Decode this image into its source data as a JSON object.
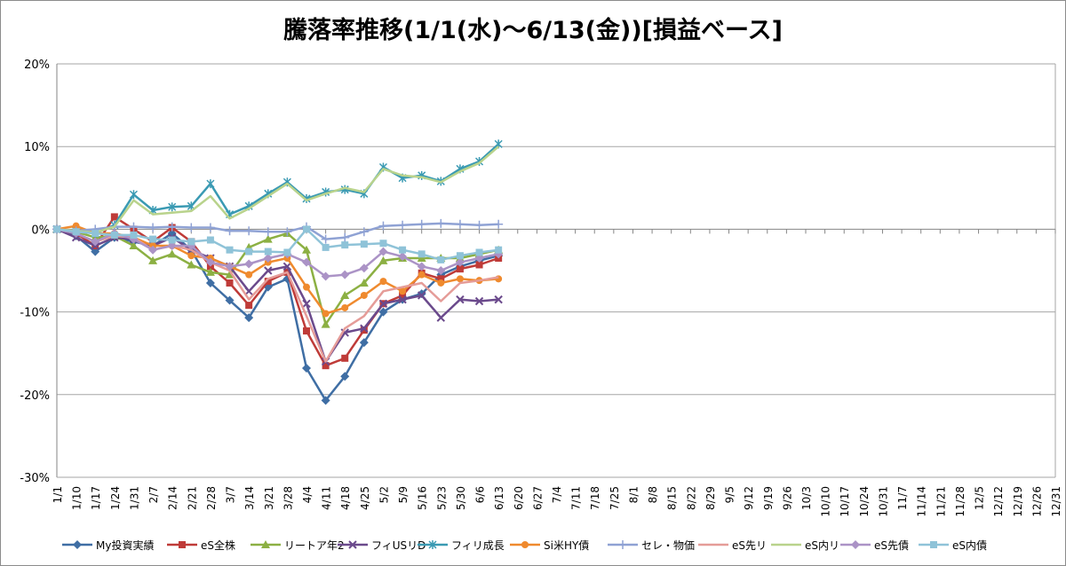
{
  "chart_data": {
    "type": "line",
    "title": "騰落率推移(1/1(水)～6/13(金))[損益ベース]",
    "xlabel": "",
    "ylabel": "",
    "ylim": [
      -30,
      20
    ],
    "yticks": [
      20,
      10,
      0,
      -10,
      -20,
      -30
    ],
    "ytick_labels": [
      "20%",
      "10%",
      "0%",
      "-10%",
      "-20%",
      "-30%"
    ],
    "grid": "horizontal",
    "legend_position": "bottom",
    "categories": [
      "1/1",
      "1/10",
      "1/17",
      "1/24",
      "1/31",
      "2/7",
      "2/14",
      "2/21",
      "2/28",
      "3/7",
      "3/14",
      "3/21",
      "3/28",
      "4/4",
      "4/11",
      "4/18",
      "4/25",
      "5/2",
      "5/9",
      "5/16",
      "5/23",
      "5/30",
      "6/6",
      "6/13",
      "6/20",
      "6/27",
      "7/4",
      "7/11",
      "7/18",
      "7/25",
      "8/1",
      "8/8",
      "8/15",
      "8/22",
      "8/29",
      "9/5",
      "9/12",
      "9/19",
      "9/26",
      "10/3",
      "10/10",
      "10/17",
      "10/24",
      "10/31",
      "11/7",
      "11/14",
      "11/21",
      "11/28",
      "12/5",
      "12/12",
      "12/19",
      "12/26",
      "12/31"
    ],
    "x": [
      1,
      10,
      17,
      24,
      31,
      38,
      45,
      52,
      59,
      66,
      73,
      80,
      87,
      94,
      101,
      108,
      115,
      122,
      129,
      136,
      143,
      150,
      157,
      164,
      171,
      178,
      185,
      192,
      199,
      206,
      213,
      220,
      227,
      234,
      241,
      248,
      255,
      262,
      269,
      276,
      283,
      290,
      297,
      304,
      311,
      318,
      325,
      332,
      339,
      346,
      353,
      360,
      365
    ],
    "series": [
      {
        "name": "My投資実績",
        "color": "#3f6ea4",
        "marker": "diamond",
        "points": [
          [
            1,
            0
          ],
          [
            10,
            -0.8
          ],
          [
            17,
            -2.7
          ],
          [
            24,
            -1.0
          ],
          [
            31,
            -1.5
          ],
          [
            38,
            -2.0
          ],
          [
            45,
            -0.5
          ],
          [
            52,
            -2.5
          ],
          [
            59,
            -6.5
          ],
          [
            66,
            -8.6
          ],
          [
            73,
            -10.7
          ],
          [
            80,
            -7.0
          ],
          [
            87,
            -6.0
          ],
          [
            94,
            -16.8
          ],
          [
            101,
            -20.7
          ],
          [
            108,
            -17.8
          ],
          [
            115,
            -13.7
          ],
          [
            122,
            -10.0
          ],
          [
            129,
            -8.5
          ],
          [
            136,
            -7.8
          ],
          [
            143,
            -5.5
          ],
          [
            150,
            -4.5
          ],
          [
            157,
            -3.8
          ],
          [
            164,
            -3.2
          ]
        ]
      },
      {
        "name": "eS全株",
        "color": "#bf3b38",
        "marker": "square",
        "points": [
          [
            1,
            0
          ],
          [
            10,
            -0.5
          ],
          [
            17,
            -2.0
          ],
          [
            24,
            1.5
          ],
          [
            31,
            0
          ],
          [
            38,
            -1.5
          ],
          [
            45,
            0.2
          ],
          [
            52,
            -1.5
          ],
          [
            59,
            -4.5
          ],
          [
            66,
            -6.5
          ],
          [
            73,
            -9.2
          ],
          [
            80,
            -6.3
          ],
          [
            87,
            -5.2
          ],
          [
            94,
            -12.3
          ],
          [
            101,
            -16.5
          ],
          [
            108,
            -15.6
          ],
          [
            115,
            -12.2
          ],
          [
            122,
            -9.0
          ],
          [
            129,
            -8.0
          ],
          [
            136,
            -5.3
          ],
          [
            143,
            -6.0
          ],
          [
            150,
            -4.8
          ],
          [
            157,
            -4.3
          ],
          [
            164,
            -3.5
          ]
        ]
      },
      {
        "name": "リートア年2",
        "color": "#8cb043",
        "marker": "triangle",
        "points": [
          [
            1,
            0
          ],
          [
            10,
            -0.3
          ],
          [
            17,
            -1.0
          ],
          [
            24,
            -0.8
          ],
          [
            31,
            -2.0
          ],
          [
            38,
            -3.8
          ],
          [
            45,
            -3.0
          ],
          [
            52,
            -4.3
          ],
          [
            59,
            -5.2
          ],
          [
            66,
            -5.5
          ],
          [
            73,
            -2.2
          ],
          [
            80,
            -1.2
          ],
          [
            87,
            -0.5
          ],
          [
            94,
            -2.5
          ],
          [
            101,
            -11.5
          ],
          [
            108,
            -8.0
          ],
          [
            115,
            -6.5
          ],
          [
            122,
            -3.8
          ],
          [
            129,
            -3.5
          ],
          [
            136,
            -3.5
          ],
          [
            143,
            -3.5
          ],
          [
            150,
            -3.5
          ],
          [
            157,
            -3.0
          ],
          [
            164,
            -2.5
          ]
        ]
      },
      {
        "name": "フィUSリD",
        "color": "#6b4a8c",
        "marker": "x",
        "points": [
          [
            1,
            0
          ],
          [
            10,
            -1.0
          ],
          [
            17,
            -2.0
          ],
          [
            24,
            -1.0
          ],
          [
            31,
            -1.2
          ],
          [
            38,
            -2.0
          ],
          [
            45,
            -1.0
          ],
          [
            52,
            -2.5
          ],
          [
            59,
            -3.5
          ],
          [
            66,
            -4.5
          ],
          [
            73,
            -7.5
          ],
          [
            80,
            -5.0
          ],
          [
            87,
            -4.5
          ],
          [
            94,
            -9.0
          ],
          [
            101,
            -16.0
          ],
          [
            108,
            -12.5
          ],
          [
            115,
            -12.0
          ],
          [
            122,
            -9.0
          ],
          [
            129,
            -8.5
          ],
          [
            136,
            -8.0
          ],
          [
            143,
            -10.7
          ],
          [
            150,
            -8.5
          ],
          [
            157,
            -8.7
          ],
          [
            164,
            -8.5
          ]
        ]
      },
      {
        "name": "フィリ成長",
        "color": "#3a9ab3",
        "marker": "star",
        "points": [
          [
            1,
            0
          ],
          [
            10,
            -0.2
          ],
          [
            17,
            -0.5
          ],
          [
            24,
            0.5
          ],
          [
            31,
            4.2
          ],
          [
            38,
            2.3
          ],
          [
            45,
            2.7
          ],
          [
            52,
            2.8
          ],
          [
            59,
            5.5
          ],
          [
            66,
            1.8
          ],
          [
            73,
            2.8
          ],
          [
            80,
            4.3
          ],
          [
            87,
            5.7
          ],
          [
            94,
            3.7
          ],
          [
            101,
            4.5
          ],
          [
            108,
            4.8
          ],
          [
            115,
            4.3
          ],
          [
            122,
            7.5
          ],
          [
            129,
            6.2
          ],
          [
            136,
            6.5
          ],
          [
            143,
            5.8
          ],
          [
            150,
            7.3
          ],
          [
            157,
            8.2
          ],
          [
            164,
            10.3
          ]
        ]
      },
      {
        "name": "Si米HY債",
        "color": "#ef8a2e",
        "marker": "circle",
        "points": [
          [
            1,
            0
          ],
          [
            10,
            0.4
          ],
          [
            17,
            -0.5
          ],
          [
            24,
            -0.5
          ],
          [
            31,
            -1.0
          ],
          [
            38,
            -2.0
          ],
          [
            45,
            -2.0
          ],
          [
            52,
            -3.2
          ],
          [
            59,
            -3.5
          ],
          [
            66,
            -4.5
          ],
          [
            73,
            -5.5
          ],
          [
            80,
            -4.0
          ],
          [
            87,
            -3.5
          ],
          [
            94,
            -7.0
          ],
          [
            101,
            -10.2
          ],
          [
            108,
            -9.5
          ],
          [
            115,
            -8.0
          ],
          [
            122,
            -6.3
          ],
          [
            129,
            -7.5
          ],
          [
            136,
            -5.5
          ],
          [
            143,
            -6.5
          ],
          [
            150,
            -6.0
          ],
          [
            157,
            -6.2
          ],
          [
            164,
            -6.0
          ]
        ]
      },
      {
        "name": "セレ・物価",
        "color": "#8fa2d4",
        "marker": "plus",
        "points": [
          [
            1,
            0
          ],
          [
            10,
            -0.2
          ],
          [
            17,
            0
          ],
          [
            24,
            0.3
          ],
          [
            31,
            0.3
          ],
          [
            38,
            0.2
          ],
          [
            45,
            0.3
          ],
          [
            52,
            0.2
          ],
          [
            59,
            0.2
          ],
          [
            66,
            -0.2
          ],
          [
            73,
            -0.2
          ],
          [
            80,
            -0.3
          ],
          [
            87,
            -0.3
          ],
          [
            94,
            0.3
          ],
          [
            101,
            -1.2
          ],
          [
            108,
            -1.0
          ],
          [
            115,
            -0.3
          ],
          [
            122,
            0.4
          ],
          [
            129,
            0.5
          ],
          [
            136,
            0.6
          ],
          [
            143,
            0.7
          ],
          [
            150,
            0.6
          ],
          [
            157,
            0.5
          ],
          [
            164,
            0.6
          ]
        ]
      },
      {
        "name": "eS先リ",
        "color": "#e59c98",
        "marker": "none",
        "points": [
          [
            1,
            0
          ],
          [
            10,
            -0.5
          ],
          [
            17,
            -1.5
          ],
          [
            24,
            -0.8
          ],
          [
            31,
            -1.0
          ],
          [
            38,
            -2.5
          ],
          [
            45,
            -2.0
          ],
          [
            52,
            -2.5
          ],
          [
            59,
            -4.0
          ],
          [
            66,
            -5.0
          ],
          [
            73,
            -8.5
          ],
          [
            80,
            -6.0
          ],
          [
            87,
            -5.2
          ],
          [
            94,
            -10.5
          ],
          [
            101,
            -16.0
          ],
          [
            108,
            -12.0
          ],
          [
            115,
            -10.5
          ],
          [
            122,
            -7.5
          ],
          [
            129,
            -7.0
          ],
          [
            136,
            -6.5
          ],
          [
            143,
            -8.7
          ],
          [
            150,
            -6.5
          ],
          [
            157,
            -6.2
          ],
          [
            164,
            -5.8
          ]
        ]
      },
      {
        "name": "eS内リ",
        "color": "#b9d38c",
        "marker": "none",
        "points": [
          [
            1,
            0
          ],
          [
            10,
            -0.2
          ],
          [
            17,
            -0.4
          ],
          [
            24,
            0.3
          ],
          [
            31,
            3.5
          ],
          [
            38,
            1.8
          ],
          [
            45,
            2.0
          ],
          [
            52,
            2.2
          ],
          [
            59,
            4.0
          ],
          [
            66,
            1.3
          ],
          [
            73,
            2.5
          ],
          [
            80,
            4.0
          ],
          [
            87,
            5.5
          ],
          [
            94,
            3.5
          ],
          [
            101,
            4.3
          ],
          [
            108,
            5.0
          ],
          [
            115,
            4.5
          ],
          [
            122,
            7.3
          ],
          [
            129,
            6.5
          ],
          [
            136,
            6.3
          ],
          [
            143,
            5.7
          ],
          [
            150,
            7.0
          ],
          [
            157,
            8.0
          ],
          [
            164,
            10.0
          ]
        ]
      },
      {
        "name": "eS先債",
        "color": "#ab93c6",
        "marker": "diamond",
        "points": [
          [
            1,
            0
          ],
          [
            10,
            -0.5
          ],
          [
            17,
            -1.5
          ],
          [
            24,
            -0.5
          ],
          [
            31,
            -1.2
          ],
          [
            38,
            -2.5
          ],
          [
            45,
            -2.0
          ],
          [
            52,
            -2.0
          ],
          [
            59,
            -4.0
          ],
          [
            66,
            -4.5
          ],
          [
            73,
            -4.2
          ],
          [
            80,
            -3.5
          ],
          [
            87,
            -3.0
          ],
          [
            94,
            -4.0
          ],
          [
            101,
            -5.7
          ],
          [
            108,
            -5.5
          ],
          [
            115,
            -4.7
          ],
          [
            122,
            -2.7
          ],
          [
            129,
            -3.3
          ],
          [
            136,
            -4.5
          ],
          [
            143,
            -5.0
          ],
          [
            150,
            -4.0
          ],
          [
            157,
            -3.5
          ],
          [
            164,
            -3.0
          ]
        ]
      },
      {
        "name": "eS内債",
        "color": "#8fc3d8",
        "marker": "square",
        "points": [
          [
            1,
            0
          ],
          [
            10,
            -0.3
          ],
          [
            17,
            -0.5
          ],
          [
            24,
            -0.7
          ],
          [
            31,
            -0.7
          ],
          [
            38,
            -1.2
          ],
          [
            45,
            -1.3
          ],
          [
            52,
            -1.5
          ],
          [
            59,
            -1.3
          ],
          [
            66,
            -2.5
          ],
          [
            73,
            -2.7
          ],
          [
            80,
            -2.7
          ],
          [
            87,
            -2.8
          ],
          [
            94,
            0
          ],
          [
            101,
            -2.2
          ],
          [
            108,
            -1.9
          ],
          [
            115,
            -1.8
          ],
          [
            122,
            -1.7
          ],
          [
            129,
            -2.5
          ],
          [
            136,
            -3.0
          ],
          [
            143,
            -3.7
          ],
          [
            150,
            -3.2
          ],
          [
            157,
            -2.8
          ],
          [
            164,
            -2.5
          ]
        ]
      }
    ]
  }
}
